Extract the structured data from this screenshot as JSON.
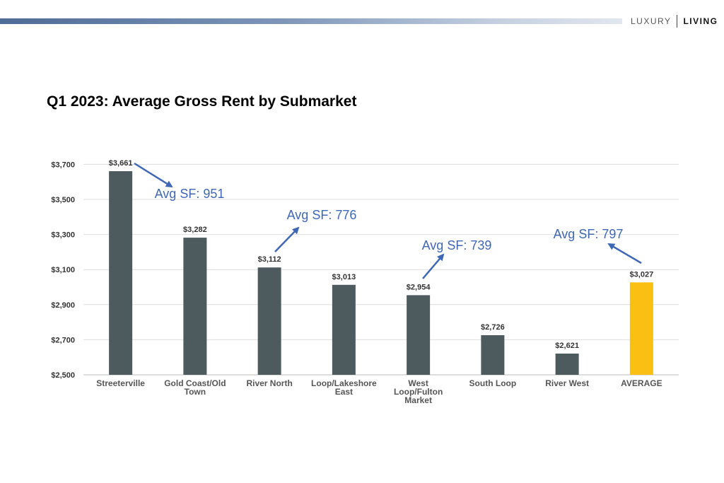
{
  "header": {
    "brand_left": "LUXURY",
    "brand_right": "LIVING"
  },
  "chart_data": {
    "type": "bar",
    "title": "Q1 2023: Average Gross Rent by Submarket",
    "xlabel": "",
    "ylabel": "",
    "categories": [
      [
        "Streeterville"
      ],
      [
        "Gold Coast/Old",
        "Town"
      ],
      [
        "River North"
      ],
      [
        "Loop/Lakeshore",
        "East"
      ],
      [
        "West",
        "Loop/Fulton",
        "Market"
      ],
      [
        "South Loop"
      ],
      [
        "River West"
      ],
      [
        "AVERAGE"
      ]
    ],
    "values": [
      3661,
      3282,
      3112,
      3013,
      2954,
      2726,
      2621,
      3027
    ],
    "value_labels": [
      "$3,661",
      "$3,282",
      "$3,112",
      "$3,013",
      "$2,954",
      "$2,726",
      "$2,621",
      "$3,027"
    ],
    "ylim": [
      2500,
      3750
    ],
    "yticks": [
      2500,
      2700,
      2900,
      3100,
      3300,
      3500,
      3700
    ],
    "ytick_labels": [
      "$2,500",
      "$2,700",
      "$2,900",
      "$3,100",
      "$3,300",
      "$3,500",
      "$3,700"
    ],
    "grid": true,
    "colors": {
      "bar": "#4d5a5e",
      "highlight": "#fbbf14",
      "annotation": "#3f67b3",
      "grid": "#dddddd"
    },
    "highlight_index": 7,
    "annotations": [
      {
        "text": "Avg SF: 951",
        "target_index": 0
      },
      {
        "text": "Avg SF: 776",
        "target_index": 2
      },
      {
        "text": "Avg SF: 739",
        "target_index": 4
      },
      {
        "text": "Avg SF: 797",
        "target_index": 7
      }
    ]
  }
}
